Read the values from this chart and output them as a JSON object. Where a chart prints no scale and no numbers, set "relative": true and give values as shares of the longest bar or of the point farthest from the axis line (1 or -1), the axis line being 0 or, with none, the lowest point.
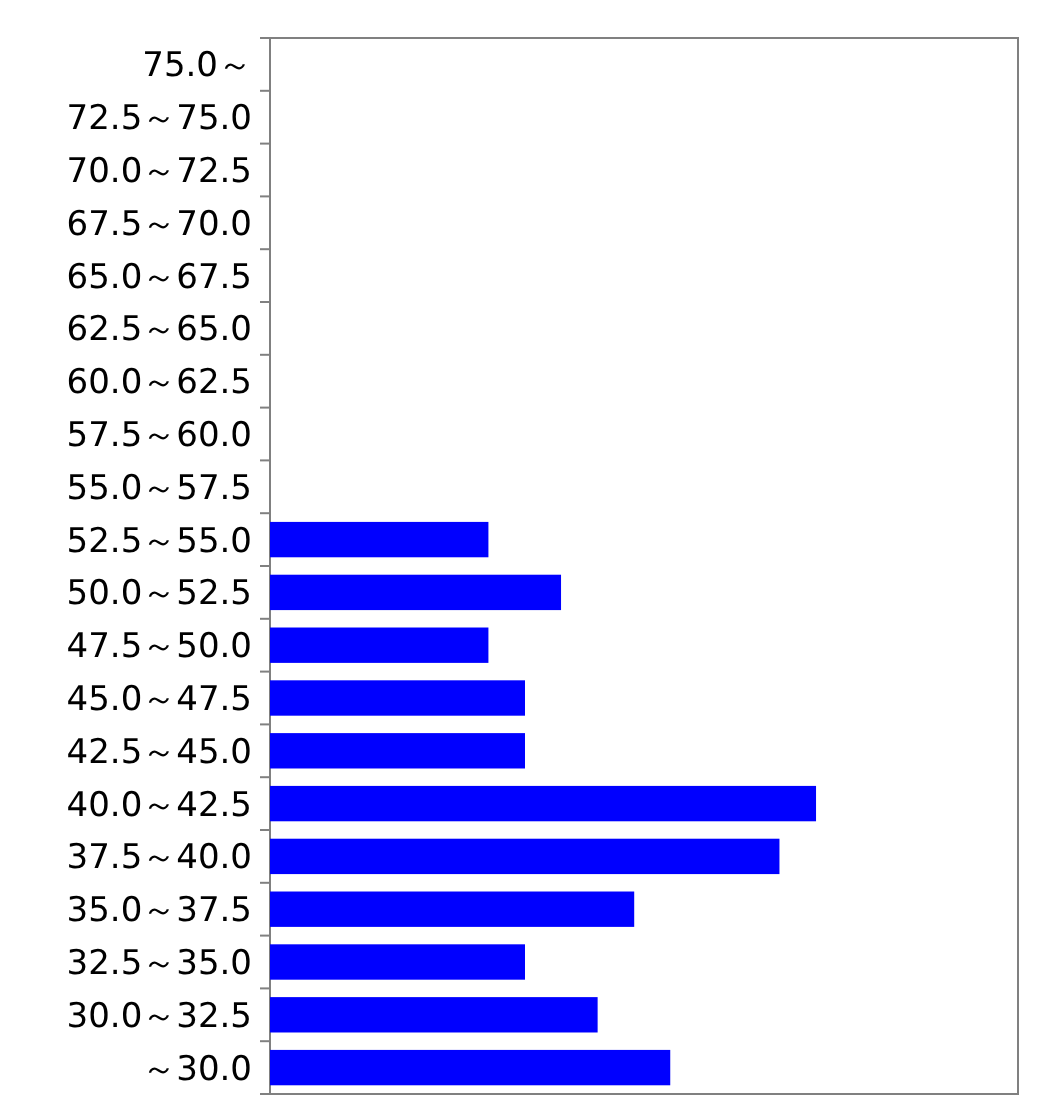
{
  "chart_data": {
    "type": "bar",
    "orientation": "horizontal",
    "relative": true,
    "color": "#0000ff",
    "categories": [
      "75.0～",
      "72.5～75.0",
      "70.0～72.5",
      "67.5～70.0",
      "65.0～67.5",
      "62.5～65.0",
      "60.0～62.5",
      "57.5～60.0",
      "55.0～57.5",
      "52.5～55.0",
      "50.0～52.5",
      "47.5～50.0",
      "45.0～47.5",
      "42.5～45.0",
      "40.0～42.5",
      "37.5～40.0",
      "35.0～37.5",
      "32.5～35.0",
      "30.0～32.5",
      "～30.0"
    ],
    "values": [
      0,
      0,
      0,
      0,
      0,
      0,
      0,
      0,
      0,
      0.4,
      0.533,
      0.4,
      0.467,
      0.467,
      1,
      0.933,
      0.667,
      0.467,
      0.6,
      0.733
    ],
    "legend": false
  }
}
